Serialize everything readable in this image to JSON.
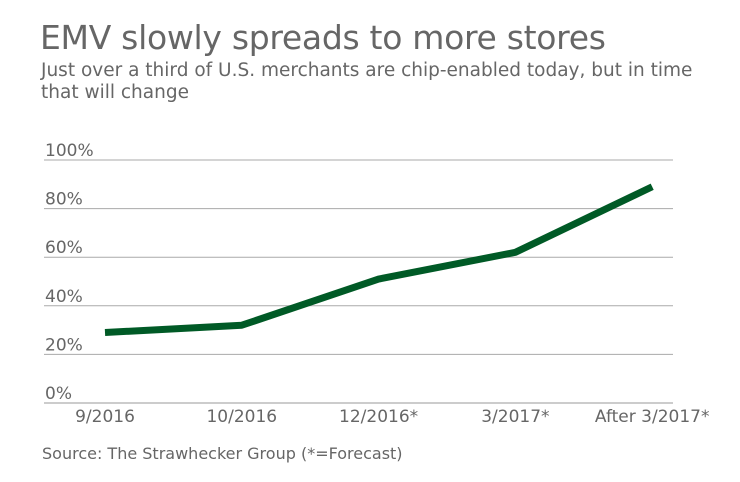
{
  "chart_data": {
    "type": "line",
    "title": "EMV slowly spreads to more stores",
    "subtitle": "Just over a third of U.S. merchants are chip-enabled today, but in time that will change",
    "categories": [
      "9/2016",
      "10/2016",
      "12/2016*",
      "3/2017*",
      "After 3/2017*"
    ],
    "values": [
      29,
      32,
      51,
      62,
      89
    ],
    "ylim": [
      0,
      100
    ],
    "yticks": [
      "0%",
      "20%",
      "40%",
      "60%",
      "80%",
      "100%"
    ],
    "xlabel": "",
    "ylabel": "",
    "grid": true,
    "line_color": "#005a26",
    "source": "Source: The Strawhecker Group (*=Forecast)"
  }
}
